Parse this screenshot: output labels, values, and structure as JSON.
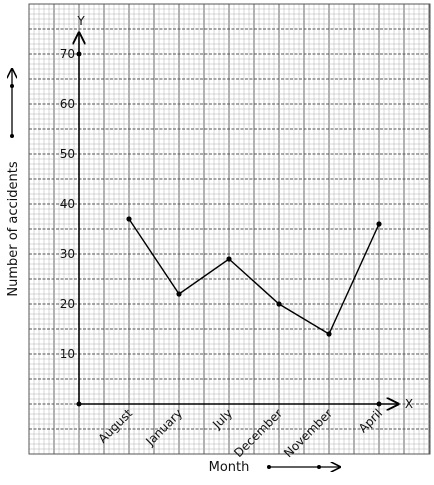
{
  "chart_data": {
    "type": "line",
    "title": "",
    "xlabel": "Month",
    "ylabel": "Number of accidents",
    "x_axis_letter": "X",
    "y_axis_letter": "Y",
    "categories": [
      "August",
      "January",
      "July",
      "December",
      "November",
      "April"
    ],
    "values": [
      37,
      22,
      29,
      20,
      14,
      36
    ],
    "y_ticks": [
      "10",
      "20",
      "30",
      "40",
      "50",
      "60",
      "70"
    ],
    "ylim": [
      0,
      70
    ],
    "grid": true,
    "colors": {
      "line": "#000000",
      "grid_major": "#555555",
      "grid_minor": "#b0b0b0"
    }
  }
}
